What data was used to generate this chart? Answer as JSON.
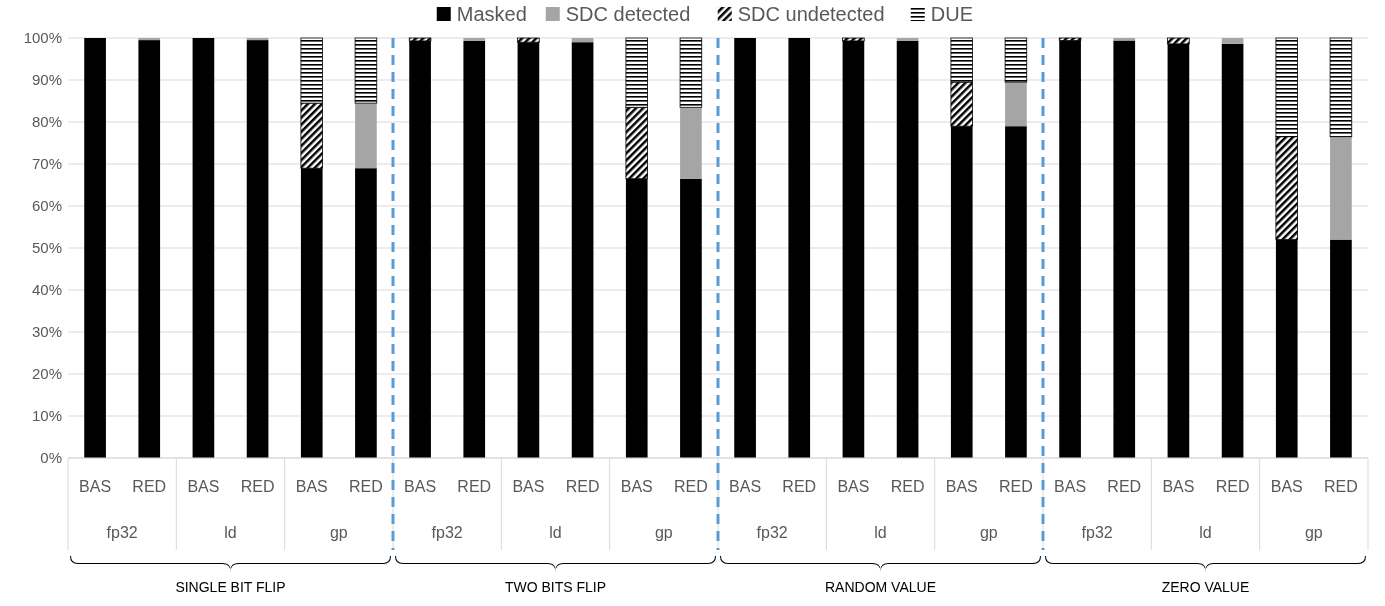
{
  "chart_data": {
    "type": "bar",
    "stacked": true,
    "categories": [
      "BAS",
      "RED",
      "BAS",
      "RED",
      "BAS",
      "RED",
      "BAS",
      "RED",
      "BAS",
      "RED",
      "BAS",
      "RED",
      "BAS",
      "RED",
      "BAS",
      "RED",
      "BAS",
      "RED",
      "BAS",
      "RED",
      "BAS",
      "RED",
      "BAS",
      "RED"
    ],
    "series": [
      {
        "name": "Masked",
        "color": "#000000",
        "values": [
          100,
          99.5,
          100,
          99.5,
          69,
          69,
          99.3,
          99.3,
          99,
          99,
          66.5,
          66.5,
          100,
          100,
          99.3,
          99.3,
          79,
          79,
          99.4,
          99.4,
          98.6,
          98.6,
          52,
          52
        ]
      },
      {
        "name": "SDC detected",
        "color": "#a5a5a5",
        "values": [
          0,
          0.5,
          0,
          0.5,
          0,
          15.5,
          0,
          0.7,
          0,
          1,
          0,
          17,
          0,
          0,
          0,
          0.7,
          0,
          10.5,
          0,
          0.6,
          0,
          1.4,
          0,
          24.5
        ]
      },
      {
        "name": "SDC undetected",
        "color": "#000000",
        "values": [
          0,
          0,
          0,
          0,
          15.5,
          0,
          0.7,
          0,
          1,
          0,
          17,
          0,
          0,
          0,
          0.7,
          0,
          10.5,
          0,
          0.6,
          0,
          1.4,
          0,
          24.5,
          0
        ]
      },
      {
        "name": "DUE",
        "color": "#000000",
        "values": [
          0,
          0,
          0,
          0,
          15.5,
          15.5,
          0,
          0,
          0,
          0,
          16.5,
          16.5,
          0,
          0,
          0,
          0,
          10.5,
          10.5,
          0,
          0,
          0,
          0,
          23.5,
          23.5
        ]
      }
    ],
    "ylim": [
      0,
      100
    ],
    "yticks": [
      {
        "value": 0,
        "label": "0%"
      },
      {
        "value": 10,
        "label": "10%"
      },
      {
        "value": 20,
        "label": "20%"
      },
      {
        "value": 30,
        "label": "30%"
      },
      {
        "value": 40,
        "label": "40%"
      },
      {
        "value": 50,
        "label": "50%"
      },
      {
        "value": 60,
        "label": "60%"
      },
      {
        "value": 70,
        "label": "70%"
      },
      {
        "value": 80,
        "label": "80%"
      },
      {
        "value": 90,
        "label": "90%"
      },
      {
        "value": 100,
        "label": "100%"
      }
    ],
    "grid": "y",
    "legend": "top",
    "annotations": [
      "fp32",
      "ld",
      "gp",
      "fp32",
      "ld",
      "gp",
      "fp32",
      "ld",
      "gp",
      "fp32",
      "ld",
      "gp",
      "SINGLE BIT FLIP",
      "TWO BITS FLIP",
      "RANDOM VALUE",
      "ZERO VALUE"
    ]
  }
}
